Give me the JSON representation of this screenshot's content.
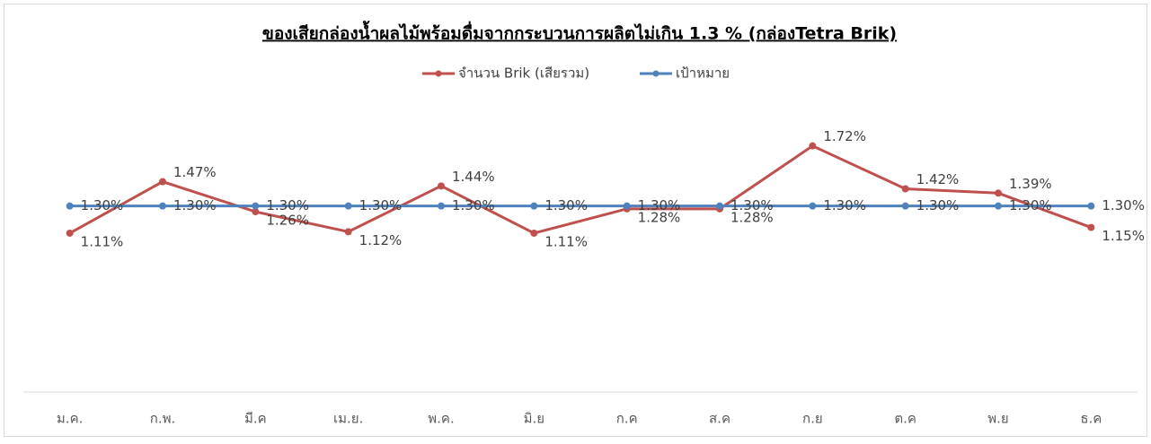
{
  "chart_data": {
    "type": "line",
    "title": "ของเสียกล่องน้ำผลไม้พร้อมดื่มจากกระบวนการผลิตไม่เกิน 1.3 % (กล่องTetra Brik)",
    "categories": [
      "ม.ค.",
      "ก.พ.",
      "มี.ค",
      "เม.ย.",
      "พ.ค.",
      "มิ.ย",
      "ก.ค",
      "ส.ค",
      "ก.ย",
      "ต.ค",
      "พ.ย",
      "ธ.ค"
    ],
    "series": [
      {
        "name": "จำนวน Brik (เสียรวม)",
        "color": "#c0504d",
        "values": [
          1.11,
          1.47,
          1.26,
          1.12,
          1.44,
          1.11,
          1.28,
          1.28,
          1.72,
          1.42,
          1.39,
          1.15
        ],
        "value_labels": [
          "1.11%",
          "1.47%",
          "1.26%",
          "1.12%",
          "1.44%",
          "1.11%",
          "1.28%",
          "1.28%",
          "1.72%",
          "1.42%",
          "1.39%",
          "1.15%"
        ]
      },
      {
        "name": "เป้าหมาย",
        "color": "#4f81bd",
        "values": [
          1.3,
          1.3,
          1.3,
          1.3,
          1.3,
          1.3,
          1.3,
          1.3,
          1.3,
          1.3,
          1.3,
          1.3
        ],
        "value_labels": [
          "1.30%",
          "1.30%",
          "1.30%",
          "1.30%",
          "1.30%",
          "1.30%",
          "1.30%",
          "1.30%",
          "1.30%",
          "1.30%",
          "1.30%",
          "1.30%"
        ]
      }
    ],
    "ylim": [
      0,
      2
    ],
    "legend": "top"
  }
}
